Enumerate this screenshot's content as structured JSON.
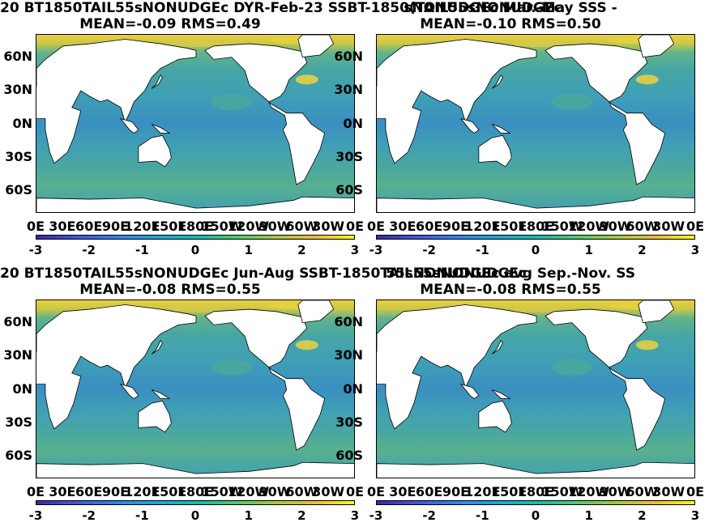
{
  "panels": [
    {
      "title": "20 BT1850TAIL55sNONUDGEc  DYR-Feb-23 SSBT-1850(TAIL55sNONUDGEc",
      "subtitle": "MEAN=-0.09   RMS=0.49"
    },
    {
      "title": "sNONUDGEc Mar.-May SSS -",
      "title_full": "Feb-23 SSBT-1850(TAIL55sNONUDGEc Mar.-May SSS -",
      "subtitle": "MEAN=-0.10   RMS=0.50"
    },
    {
      "title": "20 BT1850TAIL55sNONUDGEc Jun-Aug SSBT-1850TAIL55sNONUDGEc",
      "subtitle": "MEAN=-0.08   RMS=0.55"
    },
    {
      "title": "55sNONUDGEc avg Sep.-Nov. SS",
      "title_full": "SSBT-1850TAIL55sNONUDGEc avg Sep.-Nov. SS",
      "subtitle": "MEAN=-0.08   RMS=0.55"
    }
  ],
  "chart_data": {
    "type": "heatmap",
    "panel_titles_top_left": "20 BT1850TAIL55sNONUDGEc  DYR-Feb-23 SSBT-1850(TAIL55sNONUDGEc",
    "ytick_labels": [
      "60N",
      "30N",
      "0N",
      "30S",
      "60S"
    ],
    "xtick_labels": [
      "0E",
      "30E",
      "60E",
      "90E",
      "120E",
      "150E",
      "180E",
      "150W",
      "120W",
      "90W",
      "60W",
      "30W",
      "0E"
    ],
    "colorbar_ticks": [
      "-3",
      "-2",
      "-1",
      "0",
      "1",
      "2",
      "3"
    ],
    "clim": [
      -3,
      3
    ],
    "colormap": "parula",
    "grid": false,
    "summaries": [
      {
        "mean": -0.09,
        "rms": 0.49
      },
      {
        "mean": -0.1,
        "rms": 0.5
      },
      {
        "mean": -0.08,
        "rms": 0.55
      },
      {
        "mean": -0.08,
        "rms": 0.55
      }
    ]
  },
  "colors": {
    "land": "#ffffff",
    "ocean_mid": "#3f9fb6",
    "high": "#f9fb15",
    "low": "#3e26a8"
  }
}
